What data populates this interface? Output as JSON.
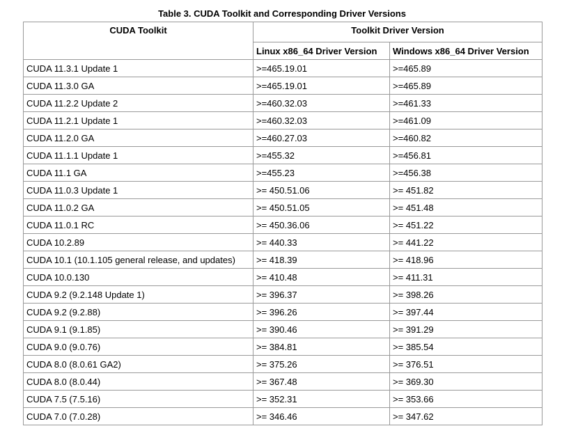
{
  "caption": "Table 3. CUDA Toolkit and Corresponding Driver Versions",
  "headers": {
    "toolkit": "CUDA Toolkit",
    "driver_group": "Toolkit Driver Version",
    "linux": "Linux x86_64 Driver Version",
    "windows": "Windows x86_64 Driver Version"
  },
  "rows": [
    {
      "toolkit": "CUDA 11.3.1 Update 1",
      "linux": ">=465.19.01",
      "windows": ">=465.89"
    },
    {
      "toolkit": "CUDA 11.3.0 GA",
      "linux": ">=465.19.01",
      "windows": ">=465.89"
    },
    {
      "toolkit": "CUDA 11.2.2 Update 2",
      "linux": ">=460.32.03",
      "windows": ">=461.33"
    },
    {
      "toolkit": "CUDA 11.2.1 Update 1",
      "linux": ">=460.32.03",
      "windows": ">=461.09"
    },
    {
      "toolkit": "CUDA 11.2.0 GA",
      "linux": ">=460.27.03",
      "windows": ">=460.82"
    },
    {
      "toolkit": "CUDA 11.1.1 Update 1",
      "linux": ">=455.32",
      "windows": ">=456.81"
    },
    {
      "toolkit": "CUDA 11.1 GA",
      "linux": ">=455.23",
      "windows": ">=456.38"
    },
    {
      "toolkit": "CUDA 11.0.3 Update 1",
      "linux": ">= 450.51.06",
      "windows": ">= 451.82"
    },
    {
      "toolkit": "CUDA 11.0.2 GA",
      "linux": ">= 450.51.05",
      "windows": ">= 451.48"
    },
    {
      "toolkit": "CUDA 11.0.1 RC",
      "linux": ">= 450.36.06",
      "windows": ">= 451.22"
    },
    {
      "toolkit": "CUDA 10.2.89",
      "linux": ">= 440.33",
      "windows": ">= 441.22"
    },
    {
      "toolkit": "CUDA 10.1 (10.1.105 general release, and updates)",
      "linux": ">= 418.39",
      "windows": ">= 418.96"
    },
    {
      "toolkit": "CUDA 10.0.130",
      "linux": ">= 410.48",
      "windows": ">= 411.31"
    },
    {
      "toolkit": "CUDA 9.2 (9.2.148 Update 1)",
      "linux": ">= 396.37",
      "windows": ">= 398.26"
    },
    {
      "toolkit": "CUDA 9.2 (9.2.88)",
      "linux": ">= 396.26",
      "windows": ">= 397.44"
    },
    {
      "toolkit": "CUDA 9.1 (9.1.85)",
      "linux": ">= 390.46",
      "windows": ">= 391.29"
    },
    {
      "toolkit": "CUDA 9.0 (9.0.76)",
      "linux": ">= 384.81",
      "windows": ">= 385.54"
    },
    {
      "toolkit": "CUDA 8.0 (8.0.61 GA2)",
      "linux": ">= 375.26",
      "windows": ">= 376.51"
    },
    {
      "toolkit": "CUDA 8.0 (8.0.44)",
      "linux": ">= 367.48",
      "windows": ">= 369.30"
    },
    {
      "toolkit": "CUDA 7.5 (7.5.16)",
      "linux": ">= 352.31",
      "windows": ">= 353.66"
    },
    {
      "toolkit": "CUDA 7.0 (7.0.28)",
      "linux": ">= 346.46",
      "windows": ">= 347.62"
    }
  ]
}
